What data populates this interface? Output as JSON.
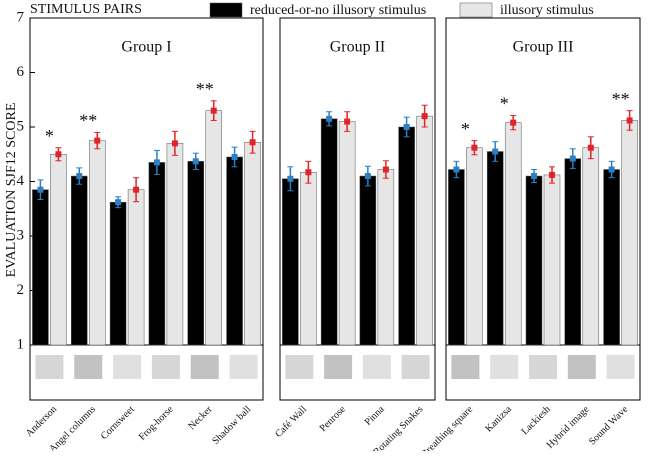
{
  "chart_data": {
    "type": "bar",
    "legend_title": "STIMULUS PAIRS",
    "ylabel": "EVALUATION SJF12 SCORE",
    "ylim": [
      1,
      7
    ],
    "yticks": [
      1,
      2,
      3,
      4,
      5,
      6,
      7
    ],
    "groups": [
      {
        "title": "Group I",
        "categories": [
          "Anderson",
          "Angel columns",
          "Cornsweet",
          "Frog-horse",
          "Necker",
          "Shadow ball"
        ]
      },
      {
        "title": "Group II",
        "categories": [
          "Café Wall",
          "Penrose",
          "Pinna",
          "Rotating Snakes"
        ]
      },
      {
        "title": "Group III",
        "categories": [
          "Breathing square",
          "Kanizsa",
          "Lackiesh",
          "Hybrid image",
          "Sound Wave"
        ]
      }
    ],
    "series": [
      {
        "name": "reduced-or-no illusory stimulus",
        "color": "#000000",
        "error_color": "#2b7fc4",
        "values": [
          3.85,
          4.1,
          3.62,
          4.35,
          4.37,
          4.45,
          4.05,
          5.15,
          4.1,
          5.0,
          4.22,
          4.55,
          4.1,
          4.42,
          4.22
        ],
        "errors": [
          0.18,
          0.15,
          0.1,
          0.22,
          0.15,
          0.18,
          0.22,
          0.13,
          0.18,
          0.18,
          0.15,
          0.18,
          0.12,
          0.18,
          0.15
        ]
      },
      {
        "name": "illusory stimulus",
        "color": "#e6e6e6",
        "error_color": "#e0242b",
        "values": [
          4.5,
          4.75,
          3.85,
          4.7,
          5.3,
          4.72,
          4.17,
          5.1,
          4.22,
          5.2,
          4.62,
          5.08,
          4.12,
          4.62,
          5.12
        ],
        "errors": [
          0.12,
          0.15,
          0.22,
          0.22,
          0.18,
          0.2,
          0.2,
          0.18,
          0.16,
          0.2,
          0.13,
          0.13,
          0.15,
          0.2,
          0.18
        ]
      }
    ],
    "annotations": [
      "*",
      "**",
      null,
      null,
      "**",
      null,
      null,
      null,
      null,
      null,
      "*",
      "*",
      null,
      null,
      "**"
    ]
  }
}
